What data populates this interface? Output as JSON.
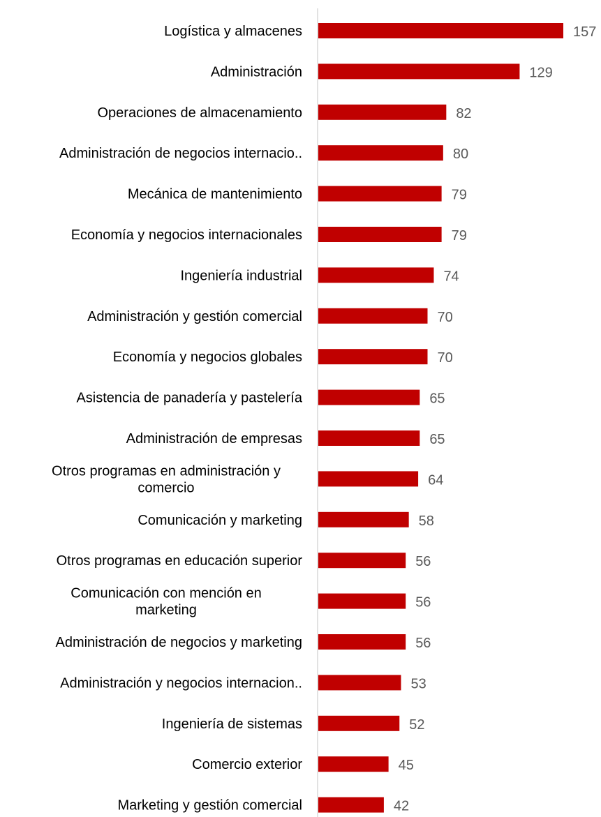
{
  "chart_data": {
    "type": "bar",
    "orientation": "horizontal",
    "title": "",
    "xlabel": "",
    "ylabel": "",
    "bar_color": "#c00000",
    "axis_color": "#d9d9d9",
    "xlim": [
      0,
      157
    ],
    "grid": false,
    "legend": "none",
    "categories": [
      [
        "Logística y almacenes"
      ],
      [
        "Administración"
      ],
      [
        "Operaciones de almacenamiento"
      ],
      [
        "Administración de negocios internacio.."
      ],
      [
        "Mecánica de mantenimiento"
      ],
      [
        "Economía y negocios internacionales"
      ],
      [
        "Ingeniería industrial"
      ],
      [
        "Administración y gestión comercial"
      ],
      [
        "Economía y negocios globales"
      ],
      [
        "Asistencia de panadería y pastelería"
      ],
      [
        "Administración de empresas"
      ],
      [
        "Otros programas en administración y",
        "comercio"
      ],
      [
        "Comunicación y marketing"
      ],
      [
        "Otros programas en educación superior"
      ],
      [
        "Comunicación con mención en",
        "marketing"
      ],
      [
        "Administración de negocios y marketing"
      ],
      [
        "Administración y negocios internacion.."
      ],
      [
        "Ingeniería de sistemas"
      ],
      [
        "Comercio exterior"
      ],
      [
        "Marketing y gestión comercial"
      ]
    ],
    "values": [
      157,
      129,
      82,
      80,
      79,
      79,
      74,
      70,
      70,
      65,
      65,
      64,
      58,
      56,
      56,
      56,
      53,
      52,
      45,
      42
    ]
  }
}
